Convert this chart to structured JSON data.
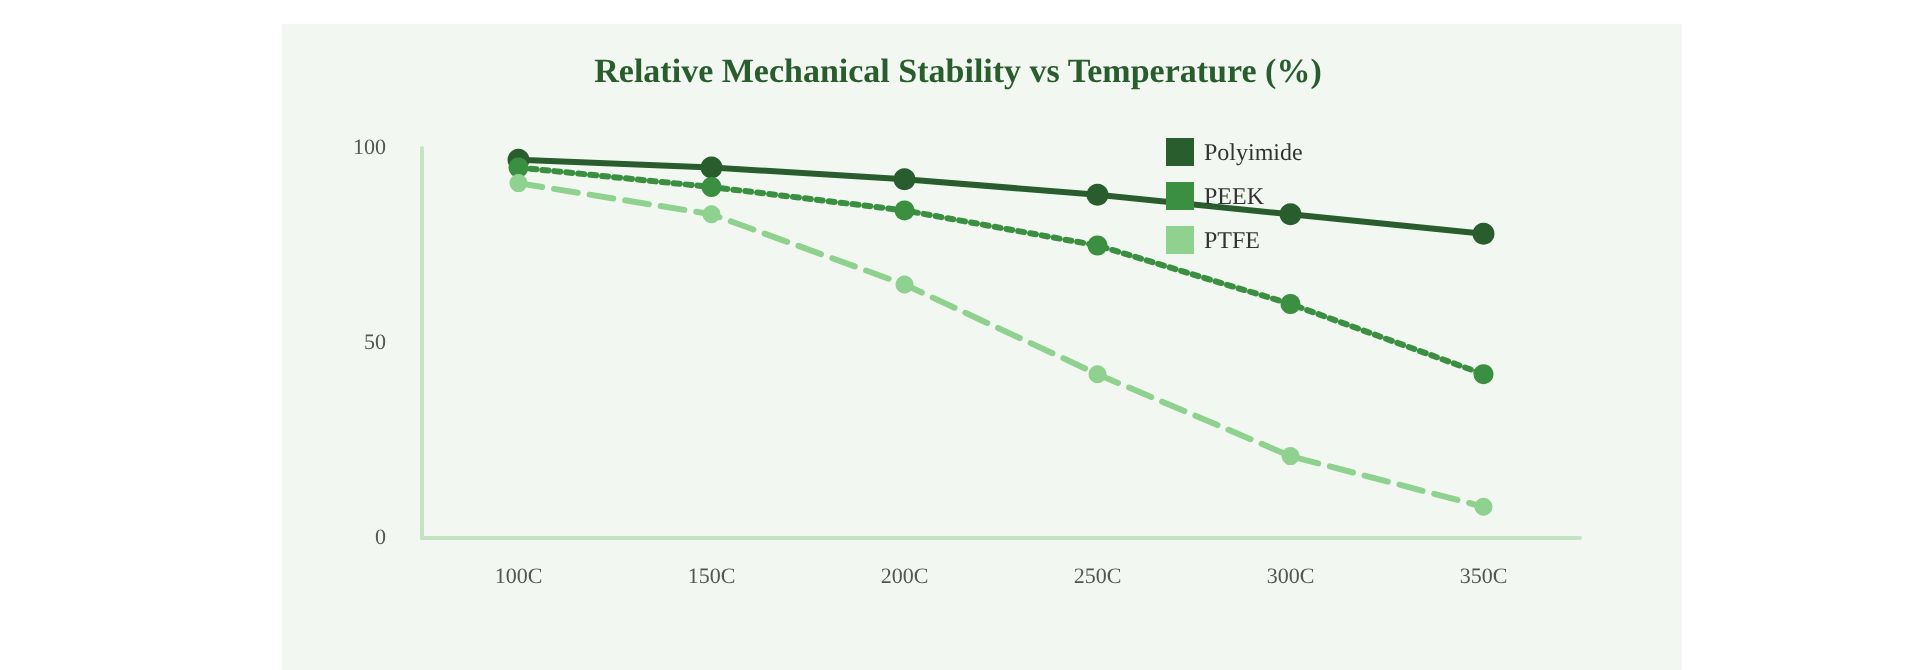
{
  "chart_data": {
    "type": "line",
    "title": "Relative Mechanical Stability vs Temperature (%)",
    "categories": [
      "100C",
      "150C",
      "200C",
      "250C",
      "300C",
      "350C"
    ],
    "ylim": [
      0,
      100
    ],
    "yticks": [
      0,
      50,
      100
    ],
    "grid": false,
    "legend": "top right",
    "marker": "circle",
    "series": [
      {
        "name": "Polyimide",
        "color": "#2a5d2e",
        "line_style": "solid",
        "values": [
          97,
          95,
          92,
          88,
          83,
          78
        ]
      },
      {
        "name": "PEEK",
        "color": "#3a8f40",
        "line_style": "dotted",
        "values": [
          95,
          90,
          84,
          75,
          60,
          42
        ]
      },
      {
        "name": "PTFE",
        "color": "#8fd18f",
        "line_style": "dashed",
        "values": [
          91,
          83,
          65,
          42,
          21,
          8
        ]
      }
    ]
  }
}
